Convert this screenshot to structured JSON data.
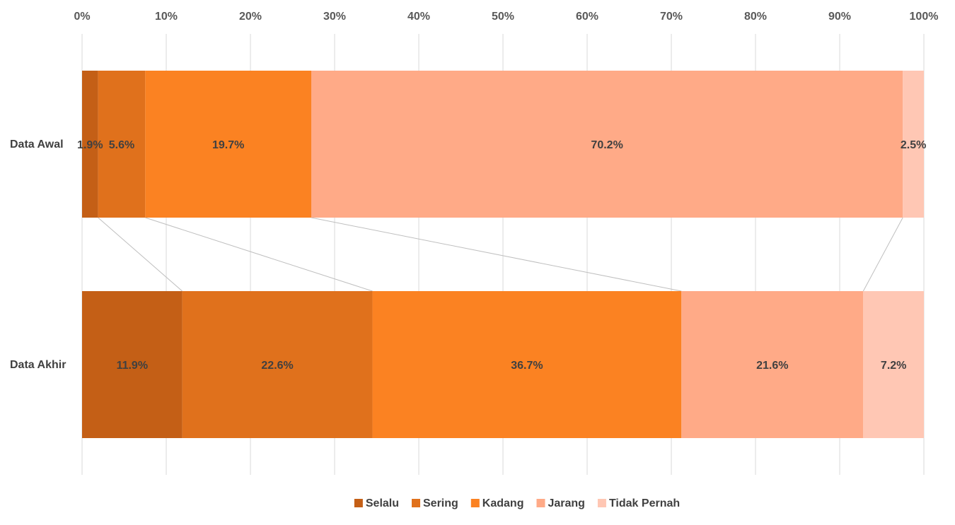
{
  "chart_data": {
    "type": "bar",
    "orientation": "horizontal",
    "stacked": "100%",
    "categories": [
      "Data Awal",
      "Data Akhir"
    ],
    "series": [
      {
        "name": "Selalu",
        "values": [
          1.9,
          11.9
        ],
        "labels": [
          "1.9%",
          "11.9%"
        ],
        "color": "#C45F16"
      },
      {
        "name": "Sering",
        "values": [
          5.6,
          22.6
        ],
        "labels": [
          "5.6%",
          "22.6%"
        ],
        "color": "#E0711C"
      },
      {
        "name": "Kadang",
        "values": [
          19.7,
          36.7
        ],
        "labels": [
          "19.7%",
          "36.7%"
        ],
        "color": "#FB8222"
      },
      {
        "name": "Jarang",
        "values": [
          70.2,
          21.6
        ],
        "labels": [
          "70.2%",
          "21.6%"
        ],
        "color": "#FFAA87"
      },
      {
        "name": "Tidak Pernah",
        "values": [
          2.5,
          7.2
        ],
        "labels": [
          "2.5%",
          "7.2%"
        ],
        "color": "#FFC7B4"
      }
    ],
    "xaxis": {
      "ticks": [
        0,
        10,
        20,
        30,
        40,
        50,
        60,
        70,
        80,
        90,
        100
      ],
      "tick_labels": [
        "0%",
        "10%",
        "20%",
        "30%",
        "40%",
        "50%",
        "60%",
        "70%",
        "80%",
        "90%",
        "100%"
      ],
      "range": [
        0,
        100
      ],
      "position": "top"
    },
    "grid": true,
    "series_lines": true,
    "legend": "bottom",
    "title": "",
    "xlabel": "",
    "ylabel": ""
  }
}
